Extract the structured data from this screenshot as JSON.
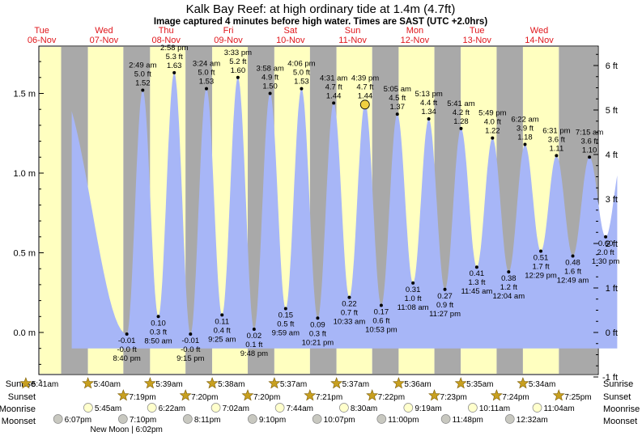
{
  "title": "Kalk Bay Reef: at high  ordinary tide at 1.4m (4.7ft)",
  "subtitle": "Image captured 4 minutes before high water. Times are SAST (UTC +2.0hrs)",
  "colors": {
    "day": "#ffffc0",
    "night": "#a9a9a9",
    "water": "#a7b6f7",
    "current_marker": "#f0d040",
    "day_label": "#e0161b"
  },
  "days": [
    {
      "name": "Tue",
      "date": "06-Nov"
    },
    {
      "name": "Wed",
      "date": "07-Nov"
    },
    {
      "name": "Thu",
      "date": "08-Nov"
    },
    {
      "name": "Fri",
      "date": "09-Nov"
    },
    {
      "name": "Sat",
      "date": "10-Nov"
    },
    {
      "name": "Sun",
      "date": "11-Nov"
    },
    {
      "name": "Mon",
      "date": "12-Nov"
    },
    {
      "name": "Tue",
      "date": "13-Nov"
    },
    {
      "name": "Wed",
      "date": "14-Nov"
    }
  ],
  "chart_data": {
    "type": "area",
    "ylabel_left_unit": "m",
    "ylabel_right_unit": "ft",
    "ylim_m": [
      -0.35,
      1.82
    ],
    "yticks_left": [
      "0.0 m",
      "0.5 m",
      "1.0 m",
      "1.5 m"
    ],
    "yticks_left_values": [
      0.0,
      0.5,
      1.0,
      1.5
    ],
    "yticks_right": [
      "-1 ft",
      "0 ft",
      "1 ft",
      "2 ft",
      "3 ft",
      "4 ft",
      "5 ft",
      "6 ft"
    ],
    "yticks_right_values_ft": [
      -1,
      0,
      1,
      2,
      3,
      4,
      5,
      6
    ],
    "x_unit": "hours since Tue 06-Nov 00:00",
    "tides": [
      {
        "t": "2:49 am",
        "ft": "5.0 ft",
        "m": "1.52 m",
        "x": 26.82,
        "y": 1.52,
        "type": "high"
      },
      {
        "t": "8:40 pm",
        "ft": "-0.0 ft",
        "m": "-0.01 m",
        "x": 20.67,
        "y": -0.01,
        "type": "low"
      },
      {
        "t": "8:50 am",
        "ft": "0.3 ft",
        "m": "0.10 m",
        "x": 32.83,
        "y": 0.1,
        "type": "low"
      },
      {
        "t": "2:58 pm",
        "ft": "5.3 ft",
        "m": "1.63 m",
        "x": 38.97,
        "y": 1.63,
        "type": "high"
      },
      {
        "t": "9:15 pm",
        "ft": "-0.0 ft",
        "m": "-0.01 m",
        "x": 45.25,
        "y": -0.01,
        "type": "low"
      },
      {
        "t": "3:24 am",
        "ft": "5.0 ft",
        "m": "1.53 m",
        "x": 51.4,
        "y": 1.53,
        "type": "high"
      },
      {
        "t": "9:25 am",
        "ft": "0.4 ft",
        "m": "0.11 m",
        "x": 57.42,
        "y": 0.11,
        "type": "low"
      },
      {
        "t": "3:33 pm",
        "ft": "5.2 ft",
        "m": "1.60 m",
        "x": 63.55,
        "y": 1.6,
        "type": "high"
      },
      {
        "t": "9:48 pm",
        "ft": "0.1 ft",
        "m": "0.02 m",
        "x": 69.8,
        "y": 0.02,
        "type": "low"
      },
      {
        "t": "3:58 am",
        "ft": "4.9 ft",
        "m": "1.50 m",
        "x": 75.97,
        "y": 1.5,
        "type": "high"
      },
      {
        "t": "9:59 am",
        "ft": "0.5 ft",
        "m": "0.15 m",
        "x": 81.98,
        "y": 0.15,
        "type": "low"
      },
      {
        "t": "4:06 pm",
        "ft": "5.0 ft",
        "m": "1.53 m",
        "x": 88.1,
        "y": 1.53,
        "type": "high"
      },
      {
        "t": "10:21 pm",
        "ft": "0.3 ft",
        "m": "0.09 m",
        "x": 94.35,
        "y": 0.09,
        "type": "low"
      },
      {
        "t": "4:31 am",
        "ft": "4.7 ft",
        "m": "1.44 m",
        "x": 100.52,
        "y": 1.44,
        "type": "high"
      },
      {
        "t": "10:33 am",
        "ft": "0.7 ft",
        "m": "0.22 m",
        "x": 106.55,
        "y": 0.22,
        "type": "low"
      },
      {
        "t": "4:39 pm",
        "ft": "4.7 ft",
        "m": "1.44 m",
        "x": 112.65,
        "y": 1.44,
        "type": "high"
      },
      {
        "t": "10:53 pm",
        "ft": "0.6 ft",
        "m": "0.17 m",
        "x": 118.88,
        "y": 0.17,
        "type": "low"
      },
      {
        "t": "5:05 am",
        "ft": "4.5 ft",
        "m": "1.37 m",
        "x": 125.08,
        "y": 1.37,
        "type": "high"
      },
      {
        "t": "11:08 am",
        "ft": "1.0 ft",
        "m": "0.31 m",
        "x": 131.13,
        "y": 0.31,
        "type": "low"
      },
      {
        "t": "5:13 pm",
        "ft": "4.4 ft",
        "m": "1.34 m",
        "x": 137.22,
        "y": 1.34,
        "type": "high"
      },
      {
        "t": "11:27 pm",
        "ft": "0.9 ft",
        "m": "0.27 m",
        "x": 143.45,
        "y": 0.27,
        "type": "low"
      },
      {
        "t": "5:41 am",
        "ft": "4.2 ft",
        "m": "1.28 m",
        "x": 149.68,
        "y": 1.28,
        "type": "high"
      },
      {
        "t": "11:45 am",
        "ft": "1.3 ft",
        "m": "0.41 m",
        "x": 155.75,
        "y": 0.41,
        "type": "low"
      },
      {
        "t": "5:49 pm",
        "ft": "4.0 ft",
        "m": "1.22 m",
        "x": 161.82,
        "y": 1.22,
        "type": "high"
      },
      {
        "t": "12:04 am",
        "ft": "1.2 ft",
        "m": "0.38 m",
        "x": 168.07,
        "y": 0.38,
        "type": "low"
      },
      {
        "t": "6:22 am",
        "ft": "3.9 ft",
        "m": "1.18 m",
        "x": 174.37,
        "y": 1.18,
        "type": "high"
      },
      {
        "t": "12:29 pm",
        "ft": "1.7 ft",
        "m": "0.51 m",
        "x": 180.48,
        "y": 0.51,
        "type": "low"
      },
      {
        "t": "6:31 pm",
        "ft": "3.6 ft",
        "m": "1.11 m",
        "x": 186.52,
        "y": 1.11,
        "type": "high"
      },
      {
        "t": "12:49 am",
        "ft": "1.6 ft",
        "m": "0.48 m",
        "x": 192.82,
        "y": 0.48,
        "type": "low"
      },
      {
        "t": "7:15 am",
        "ft": "3.6 ft",
        "m": "1.10 m",
        "x": 199.25,
        "y": 1.1,
        "type": "high"
      },
      {
        "t": "1:30 pm",
        "ft": "2.0 ft",
        "m": "0.60 m",
        "x": 205.5,
        "y": 0.6,
        "type": "low"
      }
    ],
    "current": {
      "x": 112.58,
      "y": 1.43
    }
  },
  "almanac": {
    "row_labels": {
      "sunrise": "Sunrise",
      "sunset": "Sunset",
      "moonrise": "Moonrise",
      "moonset": "Moonset"
    },
    "sunrise": [
      "5:41am",
      "5:40am",
      "5:39am",
      "5:38am",
      "5:37am",
      "5:37am",
      "5:36am",
      "5:35am",
      "5:34am"
    ],
    "sunset": [
      "7:19pm",
      "7:20pm",
      "7:20pm",
      "7:21pm",
      "7:22pm",
      "7:23pm",
      "7:24pm",
      "7:25pm"
    ],
    "moonrise": [
      "5:45am",
      "6:22am",
      "7:02am",
      "7:44am",
      "8:30am",
      "9:19am",
      "10:11am",
      "11:04am"
    ],
    "moonset": [
      "6:07pm",
      "7:10pm",
      "8:11pm",
      "9:10pm",
      "10:07pm",
      "11:00pm",
      "11:48pm",
      "12:32am"
    ],
    "new_moon": "New Moon | 6:02pm"
  }
}
